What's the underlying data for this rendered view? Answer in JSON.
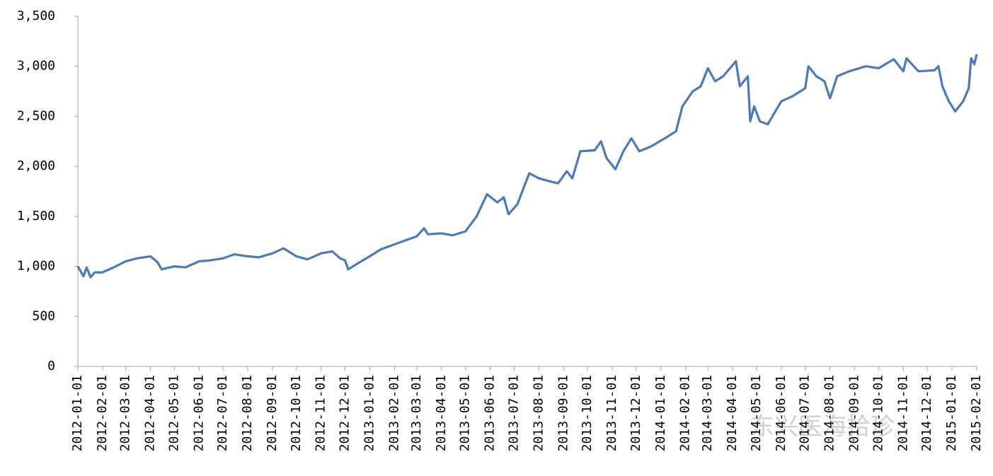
{
  "chart_data": {
    "type": "line",
    "watermark": "东兴医海拾珍",
    "xlim": [
      "2012-01-01",
      "2015-02-01"
    ],
    "xticks": [
      "2012-01-01",
      "2012-02-01",
      "2012-03-01",
      "2012-04-01",
      "2012-05-01",
      "2012-06-01",
      "2012-07-01",
      "2012-08-01",
      "2012-09-01",
      "2012-10-01",
      "2012-11-01",
      "2012-12-01",
      "2013-01-01",
      "2013-02-01",
      "2013-03-01",
      "2013-04-01",
      "2013-05-01",
      "2013-06-01",
      "2013-07-01",
      "2013-08-01",
      "2013-09-01",
      "2013-10-01",
      "2013-11-01",
      "2013-12-01",
      "2014-01-01",
      "2014-02-01",
      "2014-03-01",
      "2014-04-01",
      "2014-05-01",
      "2014-06-01",
      "2014-07-01",
      "2014-08-01",
      "2014-09-01",
      "2014-10-01",
      "2014-11-01",
      "2014-12-01",
      "2015-01-01",
      "2015-02-01"
    ],
    "ylim": [
      0,
      3500
    ],
    "yticks": [
      0,
      500,
      {
        "value": 1000,
        "label": "1,000"
      },
      {
        "value": 1500,
        "label": "1,500"
      },
      {
        "value": 2000,
        "label": "2,000"
      },
      {
        "value": 2500,
        "label": "2,500"
      },
      {
        "value": 3000,
        "label": "3,000"
      },
      {
        "value": 3500,
        "label": "3,500"
      }
    ],
    "x": [
      "2012-01-01",
      "2012-01-08",
      "2012-01-12",
      "2012-01-17",
      "2012-01-22",
      "2012-02-01",
      "2012-02-15",
      "2012-03-01",
      "2012-03-15",
      "2012-04-01",
      "2012-04-10",
      "2012-04-15",
      "2012-05-01",
      "2012-05-15",
      "2012-06-01",
      "2012-06-15",
      "2012-07-01",
      "2012-07-15",
      "2012-08-01",
      "2012-08-15",
      "2012-09-01",
      "2012-09-15",
      "2012-10-01",
      "2012-10-15",
      "2012-11-01",
      "2012-11-15",
      "2012-11-25",
      "2012-12-01",
      "2012-12-05",
      "2012-12-15",
      "2013-01-01",
      "2013-01-15",
      "2013-02-01",
      "2013-02-15",
      "2013-03-01",
      "2013-03-10",
      "2013-03-15",
      "2013-04-01",
      "2013-04-15",
      "2013-05-01",
      "2013-05-15",
      "2013-05-28",
      "2013-06-10",
      "2013-06-18",
      "2013-06-24",
      "2013-07-05",
      "2013-07-20",
      "2013-08-01",
      "2013-08-15",
      "2013-08-25",
      "2013-09-05",
      "2013-09-12",
      "2013-09-22",
      "2013-10-10",
      "2013-10-18",
      "2013-10-25",
      "2013-11-05",
      "2013-11-15",
      "2013-11-25",
      "2013-12-05",
      "2013-12-20",
      "2014-01-10",
      "2014-01-20",
      "2014-01-28",
      "2014-02-10",
      "2014-02-20",
      "2014-03-01",
      "2014-03-10",
      "2014-03-20",
      "2014-04-05",
      "2014-04-10",
      "2014-04-20",
      "2014-04-23",
      "2014-04-28",
      "2014-05-05",
      "2014-05-15",
      "2014-06-01",
      "2014-06-15",
      "2014-07-01",
      "2014-07-05",
      "2014-07-15",
      "2014-07-25",
      "2014-08-01",
      "2014-08-10",
      "2014-08-25",
      "2014-09-15",
      "2014-10-01",
      "2014-10-20",
      "2014-11-01",
      "2014-11-05",
      "2014-11-20",
      "2014-12-10",
      "2014-12-15",
      "2014-12-20",
      "2014-12-28",
      "2015-01-05",
      "2015-01-15",
      "2015-01-22",
      "2015-01-25",
      "2015-01-29",
      "2015-02-01"
    ],
    "series": [
      {
        "color": "#4a7ab8",
        "values": [
          1000,
          900,
          990,
          890,
          940,
          940,
          990,
          1050,
          1080,
          1100,
          1040,
          970,
          1000,
          990,
          1050,
          1060,
          1080,
          1120,
          1100,
          1090,
          1130,
          1180,
          1100,
          1070,
          1130,
          1150,
          1080,
          1060,
          970,
          1020,
          1100,
          1170,
          1220,
          1260,
          1300,
          1380,
          1320,
          1330,
          1310,
          1350,
          1500,
          1720,
          1640,
          1690,
          1520,
          1620,
          1930,
          1880,
          1850,
          1830,
          1950,
          1880,
          2150,
          2160,
          2250,
          2080,
          1970,
          2150,
          2280,
          2150,
          2200,
          2300,
          2350,
          2600,
          2750,
          2800,
          2980,
          2850,
          2900,
          3050,
          2800,
          2900,
          2450,
          2600,
          2450,
          2420,
          2650,
          2700,
          2780,
          3000,
          2900,
          2850,
          2680,
          2900,
          2950,
          3000,
          2980,
          3070,
          2950,
          3080,
          2950,
          2960,
          3000,
          2800,
          2650,
          2550,
          2650,
          2780,
          3080,
          3020,
          3120
        ]
      }
    ]
  }
}
